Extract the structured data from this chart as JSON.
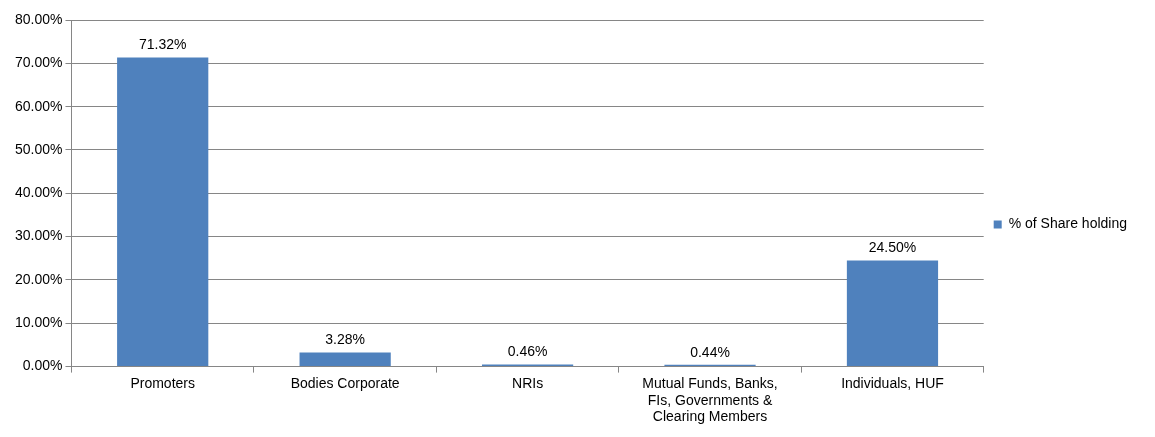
{
  "chart_data": {
    "type": "bar",
    "categories": [
      "Promoters",
      "Bodies Corporate",
      "NRIs",
      "Mutual Funds, Banks, FIs, Governments & Clearing Members",
      "Individuals, HUF"
    ],
    "series": [
      {
        "name": "% of Share holding",
        "color": "#4f81bd",
        "values": [
          71.32,
          3.28,
          0.46,
          0.44,
          24.5
        ],
        "value_labels": [
          "71.32%",
          "3.28%",
          "0.46%",
          "0.44%",
          "24.50%"
        ]
      }
    ],
    "ylim": [
      0,
      80
    ],
    "yticks": [
      {
        "value": 0,
        "label": "0.00%"
      },
      {
        "value": 10,
        "label": "10.00%"
      },
      {
        "value": 20,
        "label": "20.00%"
      },
      {
        "value": 30,
        "label": "30.00%"
      },
      {
        "value": 40,
        "label": "40.00%"
      },
      {
        "value": 50,
        "label": "50.00%"
      },
      {
        "value": 60,
        "label": "60.00%"
      },
      {
        "value": 70,
        "label": "70.00%"
      },
      {
        "value": 80,
        "label": "80.00%"
      }
    ],
    "grid": "y",
    "legend": "right"
  }
}
